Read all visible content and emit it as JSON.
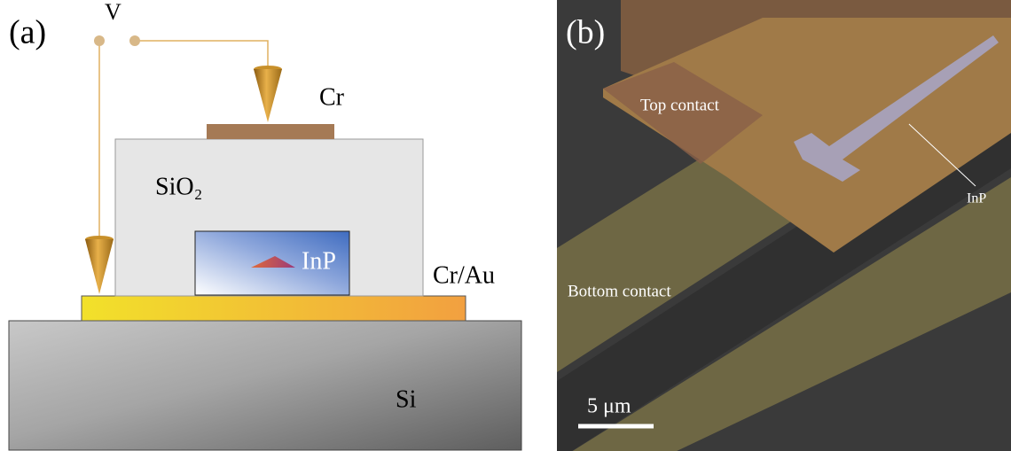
{
  "panel_a": {
    "label": "(a)",
    "voltage": "V",
    "top_electrode": "Cr",
    "insulator": "SiO₂",
    "nanowire": "InP",
    "bottom_electrode": "Cr/Au",
    "substrate": "Si"
  },
  "panel_b": {
    "label": "(b)",
    "top_contact": "Top contact",
    "nanowire": "InP",
    "bottom_contact": "Bottom contact",
    "scale_bar": "5 μm"
  }
}
